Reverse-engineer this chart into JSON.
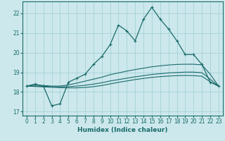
{
  "xlabel": "Humidex (Indice chaleur)",
  "bg_color": "#cce8ec",
  "grid_color": "#9ecdd4",
  "line_color": "#1a6b6b",
  "xlim": [
    -0.5,
    23.5
  ],
  "ylim": [
    16.8,
    22.6
  ],
  "xticks": [
    0,
    1,
    2,
    3,
    4,
    5,
    6,
    7,
    8,
    9,
    10,
    11,
    12,
    13,
    14,
    15,
    16,
    17,
    18,
    19,
    20,
    21,
    22,
    23
  ],
  "yticks": [
    17,
    18,
    19,
    20,
    21,
    22
  ],
  "line1_x": [
    0,
    1,
    2,
    3,
    4,
    5,
    6,
    7,
    8,
    9,
    10,
    11,
    12,
    13,
    14,
    15,
    16,
    17,
    18,
    19,
    20,
    21,
    22,
    23
  ],
  "line1_y": [
    18.3,
    18.4,
    18.3,
    17.3,
    17.4,
    18.5,
    18.7,
    18.9,
    19.4,
    19.8,
    20.4,
    21.4,
    21.1,
    20.6,
    21.7,
    22.3,
    21.7,
    21.2,
    20.6,
    19.9,
    19.9,
    19.4,
    18.5,
    18.3
  ],
  "line2_x": [
    0,
    1,
    2,
    3,
    4,
    5,
    6,
    7,
    8,
    9,
    10,
    11,
    12,
    13,
    14,
    15,
    16,
    17,
    18,
    19,
    20,
    21,
    22,
    23
  ],
  "line2_y": [
    18.3,
    18.35,
    18.33,
    18.3,
    18.3,
    18.36,
    18.45,
    18.55,
    18.65,
    18.75,
    18.88,
    18.97,
    19.06,
    19.14,
    19.21,
    19.28,
    19.33,
    19.37,
    19.4,
    19.41,
    19.41,
    19.38,
    18.9,
    18.3
  ],
  "line3_x": [
    0,
    1,
    2,
    3,
    4,
    5,
    6,
    7,
    8,
    9,
    10,
    11,
    12,
    13,
    14,
    15,
    16,
    17,
    18,
    19,
    20,
    21,
    22,
    23
  ],
  "line3_y": [
    18.3,
    18.3,
    18.29,
    18.27,
    18.26,
    18.27,
    18.3,
    18.34,
    18.4,
    18.47,
    18.56,
    18.63,
    18.7,
    18.77,
    18.83,
    18.89,
    18.93,
    18.97,
    18.99,
    19.01,
    19.01,
    18.98,
    18.65,
    18.3
  ],
  "line4_x": [
    0,
    1,
    2,
    3,
    4,
    5,
    6,
    7,
    8,
    9,
    10,
    11,
    12,
    13,
    14,
    15,
    16,
    17,
    18,
    19,
    20,
    21,
    22,
    23
  ],
  "line4_y": [
    18.3,
    18.28,
    18.26,
    18.24,
    18.22,
    18.21,
    18.21,
    18.23,
    18.27,
    18.33,
    18.41,
    18.49,
    18.56,
    18.63,
    18.69,
    18.74,
    18.78,
    18.81,
    18.83,
    18.84,
    18.83,
    18.8,
    18.52,
    18.3
  ]
}
